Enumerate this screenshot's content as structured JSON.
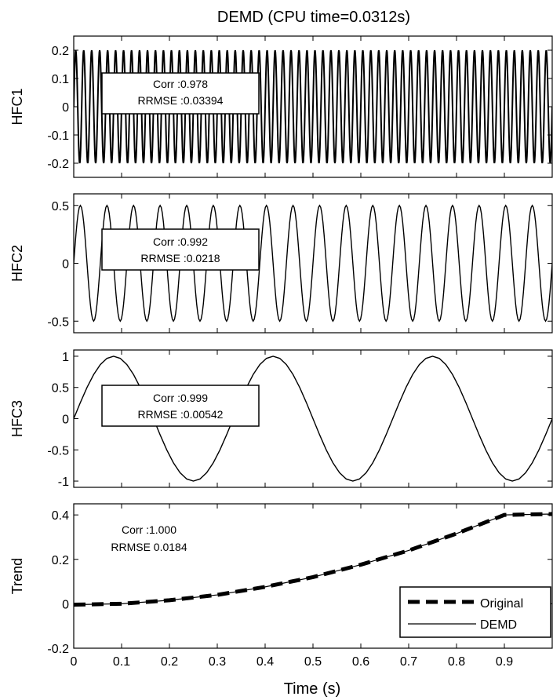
{
  "title": "DEMD (CPU time=0.0312s)",
  "xlabel": "Time (s)",
  "x_tick_labels": [
    "0",
    "0.1",
    "0.2",
    "0.3",
    "0.4",
    "0.5",
    "0.6",
    "0.7",
    "0.8",
    "0.9"
  ],
  "panels": [
    {
      "ylabel": "HFC1",
      "y_tick_labels": [
        "0.2",
        "0.1",
        "0",
        "-0.1",
        "-0.2"
      ],
      "corr_text": "Corr :0.978",
      "rrmse_text": "RRMSE :0.03394"
    },
    {
      "ylabel": "HFC2",
      "y_tick_labels": [
        "0.5",
        "0",
        "-0.5"
      ],
      "corr_text": "Corr :0.992",
      "rrmse_text": "RRMSE :0.0218"
    },
    {
      "ylabel": "HFC3",
      "y_tick_labels": [
        "1",
        "0.5",
        "0",
        "-0.5",
        "-1"
      ],
      "corr_text": "Corr :0.999",
      "rrmse_text": "RRMSE :0.00542"
    },
    {
      "ylabel": "Trend",
      "y_tick_labels": [
        "0.4",
        "0.2",
        "0",
        "-0.2"
      ],
      "corr_text": "Corr :1.000",
      "rrmse_text": "RRMSE 0.0184"
    }
  ],
  "legend": {
    "original_label": "Original",
    "demd_label": "DEMD"
  },
  "chart_data": [
    {
      "type": "line",
      "ylabel": "HFC1",
      "xlim": [
        0,
        1
      ],
      "ylim": [
        -0.25,
        0.25
      ],
      "yticks": [
        -0.2,
        -0.1,
        0,
        0.1,
        0.2
      ],
      "signal": {
        "kind": "sine",
        "amplitude": 0.2,
        "frequency_hz": 60,
        "cycles_shown": 60
      },
      "series": [
        {
          "name": "DEMD",
          "style": "solid"
        }
      ],
      "annotation": {
        "Corr": 0.978,
        "RRMSE": 0.03394
      }
    },
    {
      "type": "line",
      "ylabel": "HFC2",
      "xlim": [
        0,
        1
      ],
      "ylim": [
        -0.6,
        0.6
      ],
      "yticks": [
        -0.5,
        0,
        0.5
      ],
      "signal": {
        "kind": "sine",
        "amplitude": 0.5,
        "frequency_hz": 18,
        "cycles_shown": 18
      },
      "series": [
        {
          "name": "DEMD",
          "style": "solid"
        }
      ],
      "annotation": {
        "Corr": 0.992,
        "RRMSE": 0.0218
      }
    },
    {
      "type": "line",
      "ylabel": "HFC3",
      "xlim": [
        0,
        1
      ],
      "ylim": [
        -1.1,
        1.1
      ],
      "yticks": [
        -1,
        -0.5,
        0,
        0.5,
        1
      ],
      "signal": {
        "kind": "sine",
        "amplitude": 1.0,
        "frequency_hz": 3,
        "cycles_shown": 3
      },
      "series": [
        {
          "name": "DEMD",
          "style": "solid"
        }
      ],
      "annotation": {
        "Corr": 0.999,
        "RRMSE": 0.00542
      }
    },
    {
      "type": "line",
      "ylabel": "Trend",
      "xlabel": "Time (s)",
      "xlim": [
        0,
        1
      ],
      "ylim": [
        -0.2,
        0.45
      ],
      "xticks": [
        0,
        0.1,
        0.2,
        0.3,
        0.4,
        0.5,
        0.6,
        0.7,
        0.8,
        0.9
      ],
      "yticks": [
        -0.2,
        0,
        0.2,
        0.4
      ],
      "x": [
        0,
        0.1,
        0.2,
        0.3,
        0.4,
        0.5,
        0.6,
        0.7,
        0.8,
        0.9,
        1.0
      ],
      "series": [
        {
          "name": "Original",
          "style": "dashed",
          "values": [
            -0.004,
            0.0,
            0.016,
            0.04,
            0.076,
            0.12,
            0.176,
            0.24,
            0.316,
            0.4,
            0.404
          ]
        },
        {
          "name": "DEMD",
          "style": "solid",
          "values": [
            -0.004,
            0.0,
            0.016,
            0.04,
            0.076,
            0.12,
            0.176,
            0.24,
            0.316,
            0.4,
            0.404
          ]
        }
      ],
      "legend_position": "bottom-right",
      "annotation": {
        "Corr": 1.0,
        "RRMSE": 0.0184
      }
    }
  ]
}
